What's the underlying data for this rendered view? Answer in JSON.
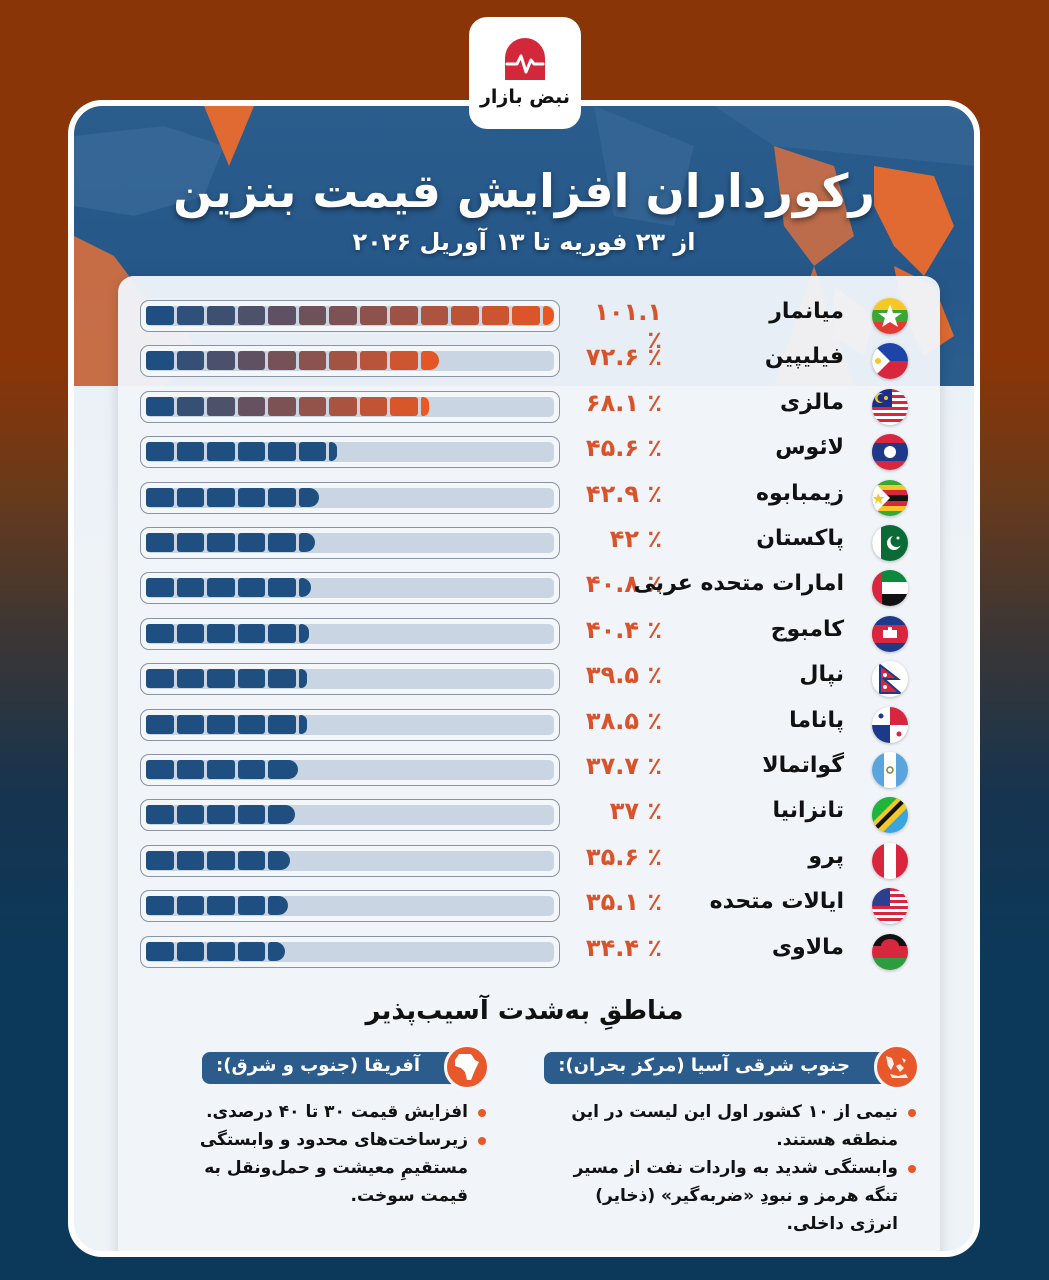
{
  "brand": {
    "name": "نبض بازار",
    "logo_icon": "pulse-arch-icon",
    "accent": "#d3283a"
  },
  "header": {
    "title": "رکورداران افزایش قیمت بنزین",
    "subtitle": "از ۲۳ فوریه تا ۱۳ آوریل ۲۰۲۶"
  },
  "colors": {
    "bar_blue": "#1f4f80",
    "bar_orange": "#f0561f",
    "value_text": "#d9532a",
    "track_bg": "#c9d5e2",
    "panel_bg": "#eef3f8",
    "header_blue": "#255789",
    "background_top": "#8a3507",
    "background_bottom": "#0c385a"
  },
  "rows": [
    {
      "country": "میانمار",
      "value_label": "۱۰۱.۱ ٪",
      "value": 101.1,
      "flag": "myanmar-flag-icon",
      "style": "gradient"
    },
    {
      "country": "فیلیپین",
      "value_label": "۷۲.۶ ٪",
      "value": 72.6,
      "flag": "philippines-flag-icon",
      "style": "gradient"
    },
    {
      "country": "مالزی",
      "value_label": "۶۸.۱ ٪",
      "value": 68.1,
      "flag": "malaysia-flag-icon",
      "style": "gradient"
    },
    {
      "country": "لائوس",
      "value_label": "۴۵.۶ ٪",
      "value": 45.6,
      "flag": "laos-flag-icon",
      "style": "blue"
    },
    {
      "country": "زیمبابوه",
      "value_label": "۴۲.۹ ٪",
      "value": 42.9,
      "flag": "zimbabwe-flag-icon",
      "style": "blue"
    },
    {
      "country": "پاکستان",
      "value_label": "۴۲ ٪",
      "value": 42,
      "flag": "pakistan-flag-icon",
      "style": "blue"
    },
    {
      "country": "امارات متحده عربی",
      "value_label": "۴۰.۸ ٪",
      "value": 40.8,
      "flag": "uae-flag-icon",
      "style": "blue"
    },
    {
      "country": "کامبوج",
      "value_label": "۴۰.۴ ٪",
      "value": 40.4,
      "flag": "cambodia-flag-icon",
      "style": "blue"
    },
    {
      "country": "نپال",
      "value_label": "۳۹.۵ ٪",
      "value": 39.5,
      "flag": "nepal-flag-icon",
      "style": "blue"
    },
    {
      "country": "پاناما",
      "value_label": "۳۸.۵ ٪",
      "value": 38.5,
      "flag": "panama-flag-icon",
      "style": "blue"
    },
    {
      "country": "گواتمالا",
      "value_label": "۳۷.۷ ٪",
      "value": 37.7,
      "flag": "guatemala-flag-icon",
      "style": "blue"
    },
    {
      "country": "تانزانیا",
      "value_label": "۳۷ ٪",
      "value": 37,
      "flag": "tanzania-flag-icon",
      "style": "blue"
    },
    {
      "country": "پرو",
      "value_label": "۳۵.۶ ٪",
      "value": 35.6,
      "flag": "peru-flag-icon",
      "style": "blue"
    },
    {
      "country": "ایالات متحده",
      "value_label": "۳۵.۱ ٪",
      "value": 35.1,
      "flag": "usa-flag-icon",
      "style": "blue"
    },
    {
      "country": "مالاوی",
      "value_label": "۳۴.۴ ٪",
      "value": 34.4,
      "flag": "malawi-flag-icon",
      "style": "blue"
    }
  ],
  "regions": {
    "title": "مناطقِ به‌شدت آسیب‌پذیر",
    "items": [
      {
        "heading": "جنوب شرقی آسیا (مرکز بحران):",
        "icon": "southeast-asia-map-icon",
        "bullets": [
          "نیمی از ۱۰ کشور اول این لیست در این منطقه هستند.",
          "وابستگی شدید به واردات نفت از مسیر تنگه هرمز و نبودِ «ضربه‌گیر» (ذخایر) انرژی داخلی."
        ]
      },
      {
        "heading": "آفریقا (جنوب و شرق):",
        "icon": "africa-map-icon",
        "bullets": [
          "افزایش قیمت ۳۰ تا ۴۰ درصدی.",
          "زیرساخت‌های محدود و وابستگی مستقیمِ معیشت و حمل‌ونقل به قیمت سوخت."
        ]
      }
    ]
  },
  "chart_data": {
    "type": "bar",
    "orientation": "horizontal",
    "title": "رکورداران افزایش قیمت بنزین",
    "subtitle": "از ۲۳ فوریه تا ۱۳ آوریل ۲۰۲۶",
    "xlabel": "",
    "ylabel": "",
    "unit": "%",
    "categories": [
      "میانمار",
      "فیلیپین",
      "مالزی",
      "لائوس",
      "زیمبابوه",
      "پاکستان",
      "امارات متحده عربی",
      "کامبوج",
      "نپال",
      "پاناما",
      "گواتمالا",
      "تانزانیا",
      "پرو",
      "ایالات متحده",
      "مالاوی"
    ],
    "values": [
      101.1,
      72.6,
      68.1,
      45.6,
      42.9,
      42,
      40.8,
      40.4,
      39.5,
      38.5,
      37.7,
      37,
      35.6,
      35.1,
      34.4
    ],
    "xlim": [
      0,
      101.1
    ],
    "grid": false,
    "legend": null,
    "highlighted": [
      "میانمار",
      "فیلیپین",
      "مالزی"
    ]
  }
}
